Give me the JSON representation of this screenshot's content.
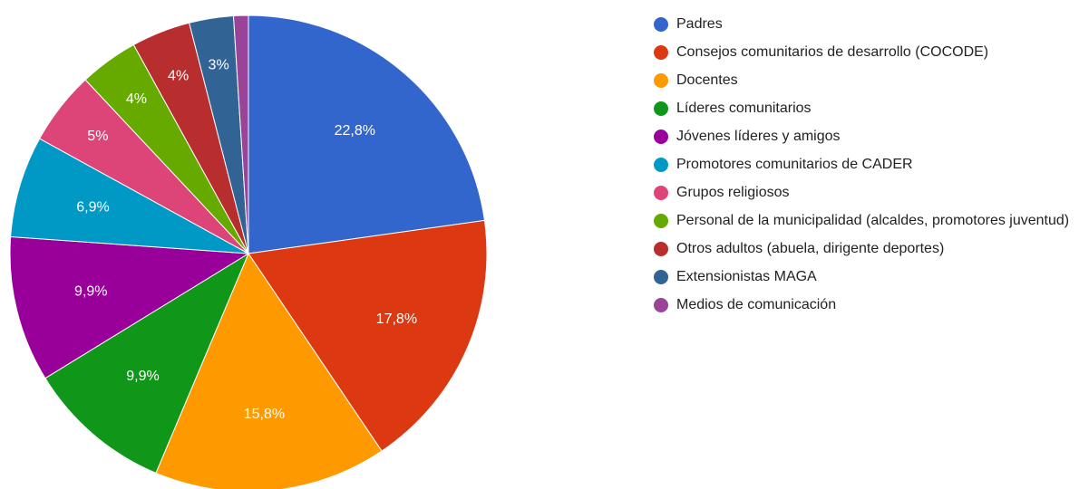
{
  "chart_data": {
    "type": "pie",
    "categories": [
      "Padres",
      "Consejos comunitarios de desarrollo (COCODE)",
      "Docentes",
      "Líderes comunitarios",
      "Jóvenes líderes y amigos",
      "Promotores comunitarios de CADER",
      "Grupos religiosos",
      "Personal de la municipalidad (alcaldes, promotores juventud)",
      "Otros adultos (abuela, dirigente deportes)",
      "Extensionistas MAGA",
      "Medios de comunicación"
    ],
    "values": [
      22.8,
      17.8,
      15.8,
      9.9,
      9.9,
      6.9,
      5,
      4,
      4,
      3,
      1
    ],
    "value_labels": [
      "22,8%",
      "17,8%",
      "15,8%",
      "9,9%",
      "9,9%",
      "6,9%",
      "5%",
      "4%",
      "4%",
      "3%",
      null
    ],
    "colors": [
      "#3366cc",
      "#dc3912",
      "#ff9900",
      "#109618",
      "#990099",
      "#0099c6",
      "#dd4477",
      "#66aa00",
      "#b82e2e",
      "#316395",
      "#994499"
    ],
    "legend": "right"
  }
}
